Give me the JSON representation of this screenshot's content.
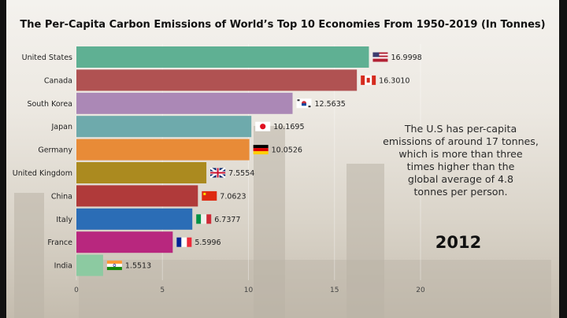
{
  "chart_data": {
    "type": "bar",
    "orientation": "horizontal",
    "title": "The Per-Capita Carbon Emissions of World’s Top 10 Economies From 1950-2019 (In Tonnes)",
    "categories": [
      "United States",
      "Canada",
      "South Korea",
      "Japan",
      "Germany",
      "United Kingdom",
      "China",
      "Italy",
      "France",
      "India"
    ],
    "values": [
      16.9998,
      16.301,
      12.5635,
      10.1695,
      10.0526,
      7.5554,
      7.0623,
      6.7377,
      5.5996,
      1.5513
    ],
    "value_labels": [
      "16.9998",
      "16.3010",
      "12.5635",
      "10.1695",
      "10.0526",
      "7.5554",
      "7.0623",
      "6.7377",
      "5.5996",
      "1.5513"
    ],
    "colors": [
      "#5fb093",
      "#b05252",
      "#ab88b6",
      "#6eaaac",
      "#e88b37",
      "#ab8a1f",
      "#b03a3a",
      "#2b6db6",
      "#b8277e",
      "#8ccaa1"
    ],
    "flags": [
      "us-flag",
      "canada-flag",
      "south-korea-flag",
      "japan-flag",
      "germany-flag",
      "uk-flag",
      "china-flag",
      "italy-flag",
      "france-flag",
      "india-flag"
    ],
    "xlim": [
      0,
      20
    ],
    "xticks": [
      "0",
      "5",
      "10",
      "15",
      "20"
    ],
    "xtick_values": [
      0,
      5,
      10,
      15,
      20
    ],
    "grid": true,
    "year": "2012",
    "annotation": [
      "The U.S has per-capita",
      "emissions of around 17 tonnes,",
      "which is more than three",
      "times higher than the",
      "global average of 4.8",
      "tonnes per person."
    ]
  }
}
